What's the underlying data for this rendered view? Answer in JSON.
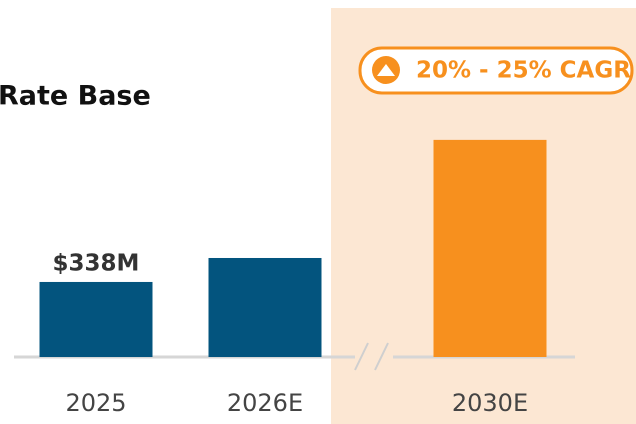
{
  "chart_data": {
    "type": "bar",
    "title": "Rate Base",
    "annotation": "20% - 25% CAGR",
    "categories": [
      "2025",
      "2026E",
      "2030E"
    ],
    "values": [
      338,
      446,
      978
    ],
    "value_labels": [
      "$338M",
      null,
      null
    ],
    "colors": [
      "#03547e",
      "#03547e",
      "#f7901e"
    ],
    "highlight_color": "#fce7d3",
    "ylim": [
      0,
      1000
    ]
  }
}
